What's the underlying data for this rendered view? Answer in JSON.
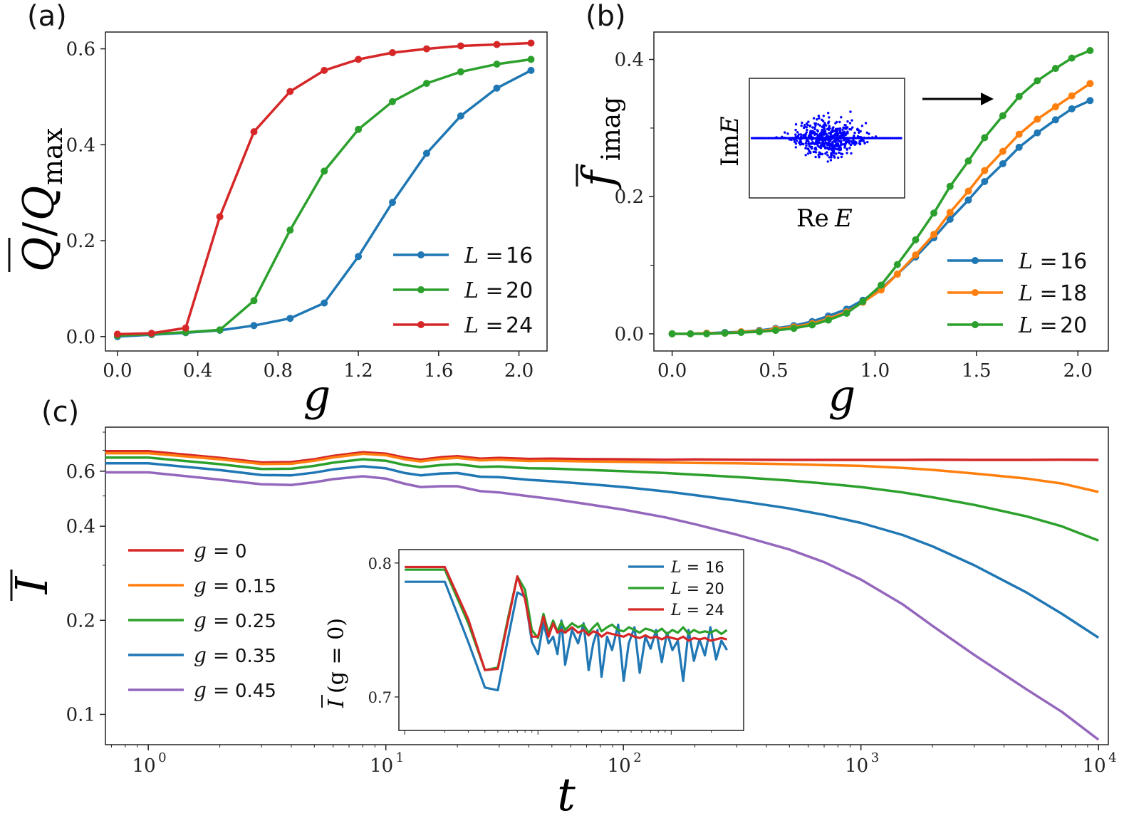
{
  "chart_data": [
    {
      "id": "a",
      "panel_label": "(a)",
      "type": "line",
      "xlabel": "g",
      "ylabel": "Q̄/Q_max",
      "ylabel_main": "Q",
      "ylabel_sub": "max",
      "xlim": [
        -0.06,
        2.14
      ],
      "ylim": [
        -0.03,
        0.635
      ],
      "xticks": [
        0.0,
        0.4,
        0.8,
        1.2,
        1.6,
        2.0
      ],
      "xticklabels": [
        "0.0",
        "0.4",
        "0.8",
        "1.2",
        "1.6",
        "2.0"
      ],
      "yticks": [
        0.0,
        0.2,
        0.4,
        0.6
      ],
      "yticklabels": [
        "0.0",
        "0.2",
        "0.4",
        "0.6"
      ],
      "legend_position": "lower-right",
      "x": [
        0.0,
        0.17,
        0.34,
        0.51,
        0.68,
        0.86,
        1.03,
        1.2,
        1.37,
        1.54,
        1.71,
        1.89,
        2.06
      ],
      "series": [
        {
          "name": "L = 16",
          "legend_var": "L =",
          "legend_val": "16",
          "color": "#1f77b4",
          "values": [
            0.0,
            0.004,
            0.008,
            0.013,
            0.023,
            0.038,
            0.07,
            0.167,
            0.28,
            0.382,
            0.46,
            0.518,
            0.555
          ]
        },
        {
          "name": "L = 20",
          "legend_var": "L =",
          "legend_val": "20",
          "color": "#2ca02c",
          "values": [
            0.002,
            0.005,
            0.009,
            0.014,
            0.075,
            0.222,
            0.345,
            0.432,
            0.49,
            0.528,
            0.552,
            0.568,
            0.578
          ]
        },
        {
          "name": "L = 24",
          "legend_var": "L =",
          "legend_val": "24",
          "color": "#d62728",
          "values": [
            0.005,
            0.007,
            0.018,
            0.25,
            0.427,
            0.511,
            0.555,
            0.578,
            0.592,
            0.6,
            0.606,
            0.609,
            0.612
          ]
        }
      ]
    },
    {
      "id": "b",
      "panel_label": "(b)",
      "type": "line",
      "xlabel": "g",
      "ylabel": "f̄_imag",
      "ylabel_main": "f",
      "ylabel_sub": "imag",
      "xlim": [
        -0.09,
        2.15
      ],
      "ylim": [
        -0.025,
        0.44
      ],
      "xticks": [
        0.0,
        0.5,
        1.0,
        1.5,
        2.0
      ],
      "xticklabels": [
        "0.0",
        "0.5",
        "1.0",
        "1.5",
        "2.0"
      ],
      "yticks": [
        0.0,
        0.2,
        0.4
      ],
      "yticklabels": [
        "0.0",
        "0.2",
        "0.4"
      ],
      "legend_position": "lower-right",
      "x": [
        0.0,
        0.09,
        0.17,
        0.26,
        0.34,
        0.43,
        0.51,
        0.6,
        0.69,
        0.77,
        0.86,
        0.94,
        1.03,
        1.11,
        1.2,
        1.29,
        1.37,
        1.46,
        1.54,
        1.63,
        1.71,
        1.8,
        1.89,
        1.97,
        2.06
      ],
      "series": [
        {
          "name": "L = 16",
          "legend_var": "L =",
          "legend_val": "16",
          "color": "#1f77b4",
          "values": [
            0.0,
            0.0,
            0.001,
            0.002,
            0.003,
            0.005,
            0.008,
            0.012,
            0.018,
            0.026,
            0.036,
            0.049,
            0.066,
            0.087,
            0.112,
            0.14,
            0.167,
            0.195,
            0.222,
            0.248,
            0.272,
            0.293,
            0.312,
            0.328,
            0.34
          ]
        },
        {
          "name": "L = 18",
          "legend_var": "L =",
          "legend_val": "18",
          "color": "#ff7f0e",
          "values": [
            0.0,
            0.0,
            0.001,
            0.001,
            0.003,
            0.004,
            0.007,
            0.01,
            0.015,
            0.022,
            0.032,
            0.046,
            0.064,
            0.087,
            0.115,
            0.145,
            0.177,
            0.208,
            0.238,
            0.266,
            0.291,
            0.313,
            0.331,
            0.347,
            0.365
          ]
        },
        {
          "name": "L = 20",
          "legend_var": "L =",
          "legend_val": "20",
          "color": "#2ca02c",
          "values": [
            0.0,
            0.0,
            0.0,
            0.001,
            0.002,
            0.003,
            0.005,
            0.008,
            0.013,
            0.02,
            0.03,
            0.047,
            0.071,
            0.101,
            0.137,
            0.176,
            0.215,
            0.252,
            0.286,
            0.318,
            0.346,
            0.369,
            0.387,
            0.402,
            0.413
          ]
        }
      ],
      "inset": {
        "type": "scatter",
        "xlabel": "ReE",
        "xlabel_main": "Re",
        "xlabel_var": "E",
        "ylabel": "ImE",
        "ylabel_main": "Im",
        "ylabel_var": "E",
        "color": "#0000ff",
        "arrow": "right"
      }
    },
    {
      "id": "c",
      "panel_label": "(c)",
      "type": "line",
      "xlabel": "t",
      "ylabel": "Ī",
      "ylabel_main": "I",
      "xscale": "log",
      "yscale": "log",
      "xlim": [
        0.66,
        11000
      ],
      "ylim": [
        0.08,
        0.83
      ],
      "xticks": [
        1,
        10,
        100,
        1000,
        10000
      ],
      "xticklabels": [
        "10^0",
        "10^1",
        "10^2",
        "10^3",
        "10^4"
      ],
      "xtick_base": "10",
      "xtick_exp": [
        "0",
        "1",
        "2",
        "3",
        "4"
      ],
      "yticks": [
        0.1,
        0.2,
        0.4,
        0.6
      ],
      "yticklabels": [
        "0.1",
        "0.2",
        "0.4",
        "0.6"
      ],
      "legend_position": "center-left",
      "t": [
        0.66,
        1.0,
        2.0,
        3.0,
        4.0,
        5.0,
        6.0,
        8.0,
        10.0,
        12.0,
        14.0,
        17.0,
        20.0,
        25.0,
        30.0,
        40.0,
        50.0,
        70.0,
        100.0,
        150.0,
        200.0,
        300.0,
        500.0,
        700.0,
        1000.0,
        1500.0,
        2000.0,
        3000.0,
        5000.0,
        7000.0,
        10000.0
      ],
      "series": [
        {
          "name": "g = 0",
          "legend_var": "g =",
          "legend_val": "0",
          "color": "#d62728",
          "values": [
            0.695,
            0.695,
            0.662,
            0.64,
            0.642,
            0.655,
            0.672,
            0.69,
            0.683,
            0.663,
            0.653,
            0.665,
            0.67,
            0.658,
            0.662,
            0.657,
            0.658,
            0.656,
            0.655,
            0.653,
            0.654,
            0.653,
            0.652,
            0.652,
            0.652,
            0.652,
            0.653,
            0.652,
            0.652,
            0.653,
            0.652
          ]
        },
        {
          "name": "g = 0.15",
          "legend_var": "g =",
          "legend_val": "0.15",
          "color": "#ff7f0e",
          "values": [
            0.685,
            0.685,
            0.655,
            0.633,
            0.634,
            0.648,
            0.664,
            0.682,
            0.675,
            0.655,
            0.645,
            0.657,
            0.662,
            0.65,
            0.653,
            0.647,
            0.648,
            0.645,
            0.643,
            0.64,
            0.638,
            0.636,
            0.632,
            0.628,
            0.624,
            0.615,
            0.606,
            0.59,
            0.568,
            0.548,
            0.515
          ]
        },
        {
          "name": "g = 0.25",
          "legend_var": "g =",
          "legend_val": "0.25",
          "color": "#2ca02c",
          "values": [
            0.663,
            0.663,
            0.632,
            0.61,
            0.611,
            0.624,
            0.639,
            0.655,
            0.648,
            0.628,
            0.618,
            0.628,
            0.632,
            0.619,
            0.621,
            0.613,
            0.612,
            0.606,
            0.6,
            0.592,
            0.585,
            0.575,
            0.56,
            0.548,
            0.534,
            0.513,
            0.495,
            0.468,
            0.43,
            0.4,
            0.36
          ]
        },
        {
          "name": "g = 0.35",
          "legend_var": "g =",
          "legend_val": "0.35",
          "color": "#1f77b4",
          "values": [
            0.636,
            0.636,
            0.605,
            0.583,
            0.582,
            0.594,
            0.608,
            0.622,
            0.613,
            0.592,
            0.582,
            0.59,
            0.592,
            0.576,
            0.574,
            0.563,
            0.557,
            0.546,
            0.534,
            0.517,
            0.503,
            0.483,
            0.456,
            0.435,
            0.41,
            0.375,
            0.345,
            0.3,
            0.245,
            0.21,
            0.176
          ]
        },
        {
          "name": "g = 0.45",
          "legend_var": "g =",
          "legend_val": "0.45",
          "color": "#9467bd",
          "values": [
            0.595,
            0.595,
            0.564,
            0.545,
            0.542,
            0.553,
            0.566,
            0.578,
            0.568,
            0.547,
            0.534,
            0.537,
            0.537,
            0.518,
            0.513,
            0.499,
            0.489,
            0.471,
            0.452,
            0.427,
            0.406,
            0.376,
            0.337,
            0.307,
            0.27,
            0.225,
            0.192,
            0.155,
            0.12,
            0.102,
            0.083
          ]
        }
      ],
      "inset": {
        "type": "line",
        "ylabel": "Ī(g = 0)",
        "ylabel_main": "I",
        "ylabel_rest": "(g = 0)",
        "xscale": "log",
        "ylim": [
          0.675,
          0.81
        ],
        "yticks": [
          0.7,
          0.8
        ],
        "yticklabels": [
          "0.7",
          "0.8"
        ],
        "t": [
          1,
          2,
          3,
          4,
          5,
          6,
          7,
          8,
          9,
          10,
          11,
          12,
          13,
          14,
          15,
          16,
          18,
          20,
          22,
          24,
          26,
          28,
          30,
          33,
          36,
          40,
          44,
          48,
          53,
          58,
          64,
          70,
          77,
          85,
          93,
          102,
          112,
          123,
          135,
          148,
          163,
          179,
          197,
          217,
          238,
          262
        ],
        "series": [
          {
            "name": "L = 16",
            "legend_var": "L =",
            "legend_val": "16",
            "color": "#1f77b4",
            "values": [
              0.786,
              0.786,
              0.741,
              0.707,
              0.705,
              0.745,
              0.778,
              0.775,
              0.741,
              0.732,
              0.755,
              0.74,
              0.745,
              0.732,
              0.757,
              0.724,
              0.75,
              0.74,
              0.755,
              0.72,
              0.74,
              0.75,
              0.715,
              0.745,
              0.735,
              0.754,
              0.712,
              0.74,
              0.752,
              0.718,
              0.745,
              0.736,
              0.75,
              0.726,
              0.748,
              0.735,
              0.742,
              0.712,
              0.75,
              0.727,
              0.743,
              0.731,
              0.752,
              0.728,
              0.742,
              0.735
            ]
          },
          {
            "name": "L = 20",
            "legend_var": "L =",
            "legend_val": "20",
            "color": "#2ca02c",
            "values": [
              0.795,
              0.795,
              0.755,
              0.72,
              0.722,
              0.76,
              0.79,
              0.78,
              0.75,
              0.744,
              0.762,
              0.748,
              0.757,
              0.749,
              0.756,
              0.75,
              0.755,
              0.752,
              0.754,
              0.748,
              0.752,
              0.755,
              0.749,
              0.752,
              0.754,
              0.75,
              0.749,
              0.752,
              0.75,
              0.748,
              0.751,
              0.75,
              0.748,
              0.751,
              0.747,
              0.75,
              0.748,
              0.752,
              0.747,
              0.75,
              0.748,
              0.749,
              0.748,
              0.75,
              0.747,
              0.75
            ]
          },
          {
            "name": "L = 24",
            "legend_var": "L =",
            "legend_val": "24",
            "color": "#d62728",
            "values": [
              0.797,
              0.797,
              0.758,
              0.72,
              0.721,
              0.758,
              0.79,
              0.773,
              0.745,
              0.745,
              0.76,
              0.745,
              0.755,
              0.748,
              0.75,
              0.748,
              0.752,
              0.748,
              0.75,
              0.746,
              0.749,
              0.748,
              0.745,
              0.748,
              0.747,
              0.746,
              0.745,
              0.747,
              0.745,
              0.744,
              0.746,
              0.744,
              0.745,
              0.743,
              0.745,
              0.744,
              0.743,
              0.745,
              0.742,
              0.744,
              0.743,
              0.744,
              0.742,
              0.743,
              0.744,
              0.743
            ]
          }
        ]
      }
    }
  ]
}
